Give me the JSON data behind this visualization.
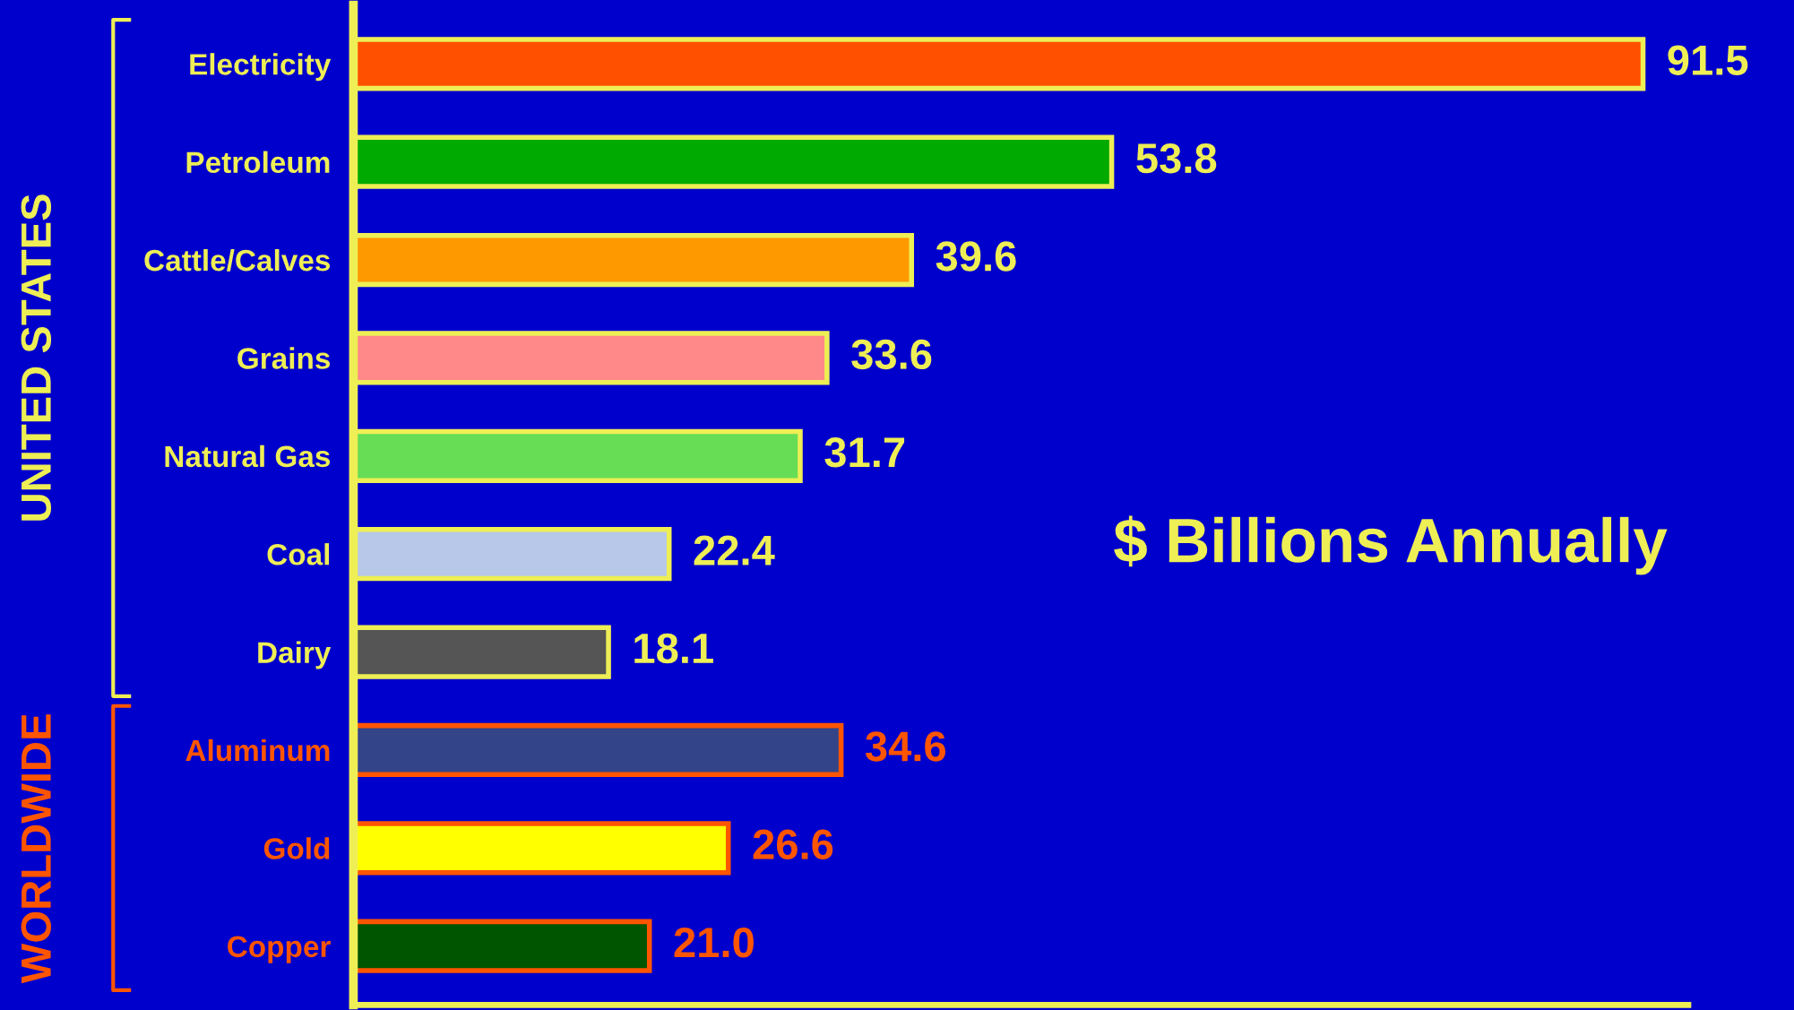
{
  "chart_data": {
    "type": "bar",
    "orientation": "horizontal",
    "categories": [
      "Electricity",
      "Petroleum",
      "Cattle/Calves",
      "Grains",
      "Natural Gas",
      "Coal",
      "Dairy",
      "Aluminum",
      "Gold",
      "Copper"
    ],
    "series": [
      {
        "colors": [
          "#ff5000",
          "#00aa00",
          "#ff9900",
          "#ff8888",
          "#66dd55",
          "#b8c8e8",
          "#555555",
          null,
          null,
          null
        ],
        "values": [
          91.5,
          53.8,
          39.6,
          33.6,
          31.7,
          22.4,
          18.1,
          null,
          null,
          null
        ],
        "value_labels": [
          "91.5",
          "53.8",
          "39.6",
          "33.6",
          "31.7",
          "22.4",
          "18.1",
          null,
          null,
          null
        ]
      },
      {
        "colors": [
          null,
          null,
          null,
          null,
          null,
          null,
          null,
          "#334488",
          "#ffff00",
          "#005500"
        ],
        "values": [
          null,
          null,
          null,
          null,
          null,
          null,
          null,
          34.6,
          26.6,
          21.0
        ],
        "value_labels": [
          null,
          null,
          null,
          null,
          null,
          null,
          null,
          "34.6",
          "26.6",
          "21.0"
        ]
      }
    ],
    "annotations": [
      "$ Billions Annually",
      "UNITED STATES",
      "WORLDWIDE"
    ],
    "grid": false,
    "legend": false
  }
}
